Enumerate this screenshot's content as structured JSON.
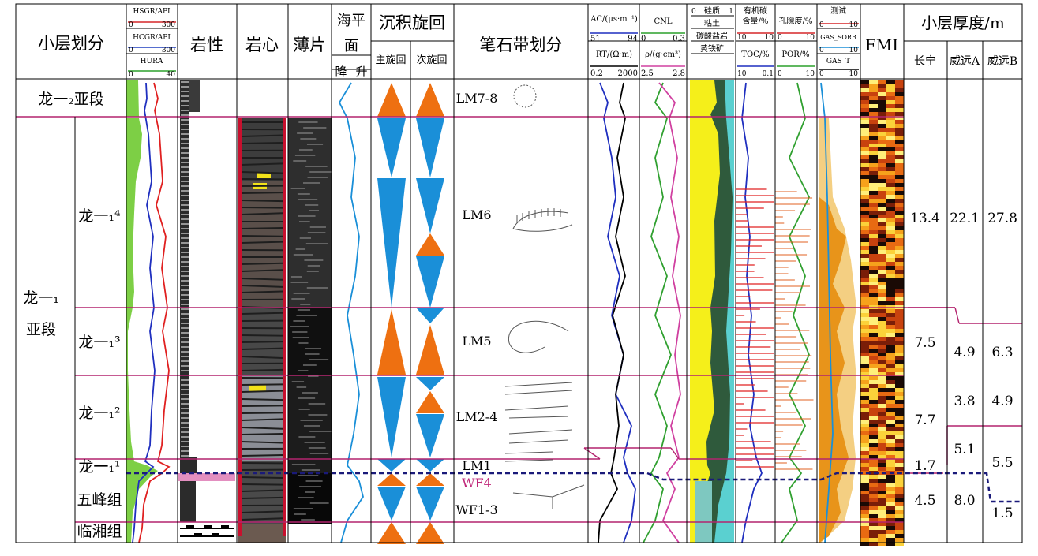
{
  "headers": {
    "layer_division": "小层划分",
    "gr_curves": [
      {
        "name": "HSGR/API",
        "min": "0",
        "max": "300",
        "color": "#d62728"
      },
      {
        "name": "HCGR/API",
        "min": "0",
        "max": "300",
        "color": "#1f3fbf"
      },
      {
        "name": "HURA",
        "min": "0",
        "max": "40",
        "color": "#2ca02c"
      }
    ],
    "lithology": "岩性",
    "core": "岩心",
    "thin_section": "薄片",
    "sea_level": {
      "line1": "海平",
      "line2": "面",
      "fall": "降",
      "rise": "升"
    },
    "cycles": {
      "title": "沉积旋回",
      "main": "主旋回",
      "sub": "次旋回"
    },
    "graptolite": "笔石带划分",
    "ac": {
      "label": "AC/(μs·m⁻¹)",
      "min": "51",
      "max": "94"
    },
    "rt": {
      "label": "RT/(Ω·m)",
      "min": "0.2",
      "max": "2000"
    },
    "cnl": {
      "label": "CNL",
      "min": "0",
      "max": "0.3"
    },
    "den": {
      "label": "ρ/(g·cm³)",
      "min": "2.5",
      "max": "2.8"
    },
    "mineral": {
      "min": "0",
      "max": "1",
      "items": [
        "硅质",
        "粘土",
        "碳酸盐岩",
        "黄铁矿"
      ]
    },
    "toc": {
      "label1": "有机碳",
      "label2": "含量/%",
      "min1": "10",
      "max1": "10",
      "label3": "TOC/%",
      "min2": "10",
      "max2": "0.1"
    },
    "por": {
      "label1": "孔隙度/%",
      "min1": "0",
      "max1": "10",
      "label2": "POR/%",
      "min2": "0",
      "max2": "10"
    },
    "gas": {
      "label1": "测试",
      "min1": "0",
      "max1": "10",
      "sorb": "GAS_SORB",
      "min2": "0",
      "max2": "10",
      "total": "GAS_T",
      "min3": "0",
      "max3": "10"
    },
    "fmi": "FMI",
    "thickness": {
      "title": "小层厚度/m",
      "cols": [
        "长宁",
        "威远A",
        "威远B"
      ]
    }
  },
  "layers": {
    "long12": "龙一₂亚段",
    "long11_main": "龙一₁",
    "long11_sub": "亚段",
    "long11_4": "龙一₁⁴",
    "long11_3": "龙一₁³",
    "long11_2": "龙一₁²",
    "long11_1": "龙一₁¹",
    "wufeng": "五峰组",
    "linxiang": "临湘组"
  },
  "graptolite_zones": [
    "LM7-8",
    "LM6",
    "LM5",
    "LM2-4",
    "LM1",
    "WF4",
    "WF1-3"
  ],
  "thickness_values": {
    "long11_4": [
      "13.4",
      "22.1",
      "27.8"
    ],
    "long11_3": [
      "7.5",
      "4.9",
      "6.3"
    ],
    "long11_2": [
      "7.7",
      "3.8",
      "4.9"
    ],
    "long11_2b": [
      "5.1",
      "5.5"
    ],
    "long11_1": [
      "1.7"
    ],
    "wufeng": [
      "4.5",
      "8.0",
      "1.5"
    ]
  }
}
